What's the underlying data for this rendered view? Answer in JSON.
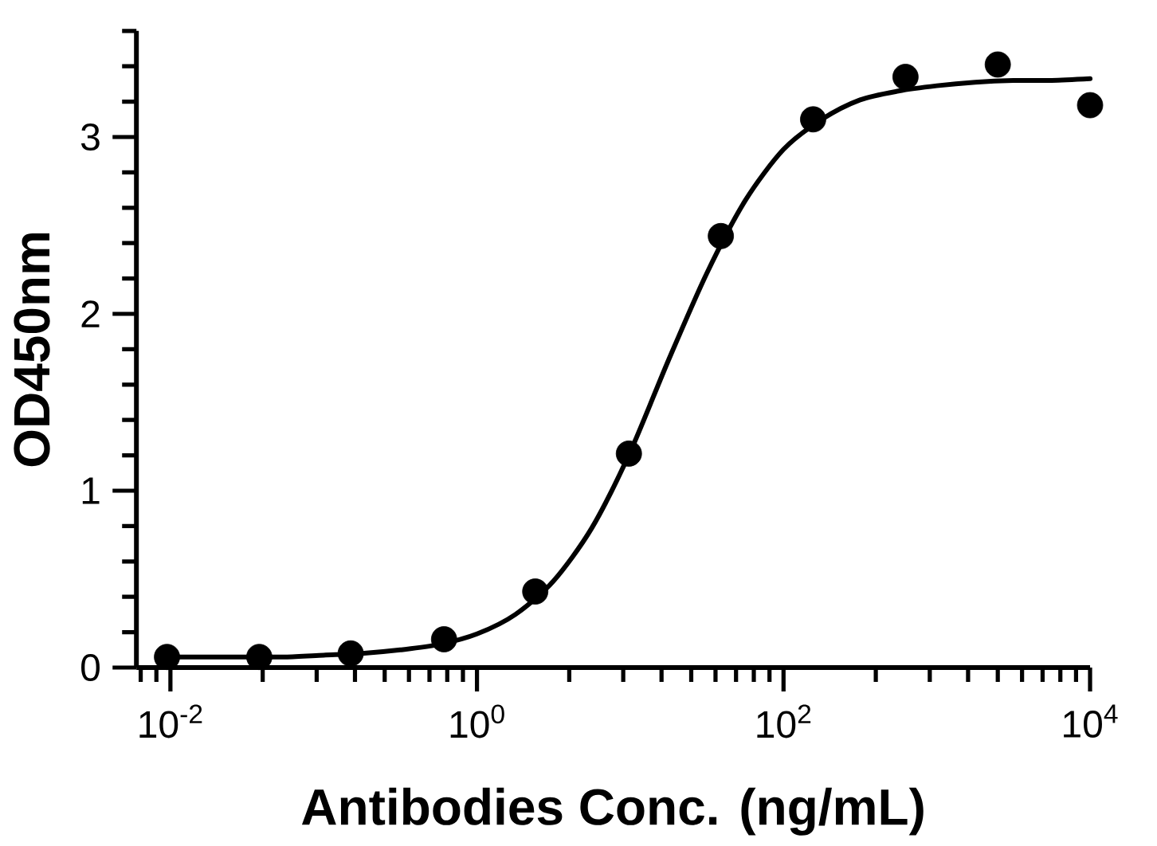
{
  "chart_data": {
    "type": "scatter",
    "xlabel": "Antibodies Conc. (ng/mL)",
    "ylabel": "OD450nm",
    "log": "x",
    "xlim": [
      0.006,
      10000
    ],
    "ylim": [
      0,
      3.6
    ],
    "xticks": [
      {
        "value": 0.01,
        "label": "10$^{-2}$"
      },
      {
        "value": 1,
        "label": "10$^{0}$"
      },
      {
        "value": 100,
        "label": "10$^{2}$"
      },
      {
        "value": 10000,
        "label": "10$^{4}$"
      }
    ],
    "yticks": [
      0,
      1,
      2,
      3
    ],
    "series": [
      {
        "color": "#000000",
        "marker": "circle",
        "x": [
          0.0095,
          0.038,
          0.15,
          0.61,
          2.4,
          9.8,
          39,
          156,
          625,
          2500,
          10000
        ],
        "values": [
          0.06,
          0.06,
          0.08,
          0.16,
          0.43,
          1.21,
          2.44,
          3.1,
          3.34,
          3.41,
          3.18
        ]
      },
      {
        "type": "line",
        "color": "#000000",
        "marker": "none",
        "line_style": "solid",
        "x": [
          0.01,
          0.0178,
          0.0316,
          0.0562,
          0.1,
          0.178,
          0.316,
          0.562,
          1,
          1.78,
          3.16,
          5.62,
          10,
          17.8,
          31.6,
          56.2,
          100,
          178,
          316,
          562,
          1000,
          1780,
          3160,
          5620,
          10000
        ],
        "values": [
          0.06,
          0.06,
          0.06,
          0.06,
          0.07,
          0.08,
          0.1,
          0.13,
          0.19,
          0.3,
          0.49,
          0.79,
          1.22,
          1.74,
          2.23,
          2.64,
          2.93,
          3.1,
          3.21,
          3.26,
          3.29,
          3.31,
          3.32,
          3.32,
          3.33
        ]
      }
    ]
  }
}
